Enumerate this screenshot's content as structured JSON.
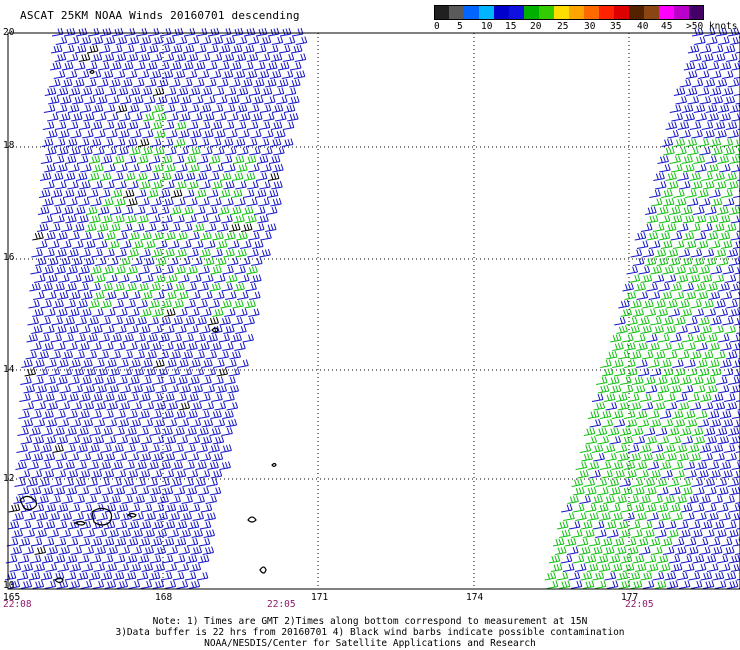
{
  "title": "ASCAT 25KM NOAA Winds 20160701 descending",
  "legend": {
    "colors": [
      "#202020",
      "#5a5a5a",
      "#0066ff",
      "#00b4ff",
      "#0000cc",
      "#1010e0",
      "#00b000",
      "#33cc00",
      "#ffdd00",
      "#ffa500",
      "#ff6a00",
      "#ff2200",
      "#dd0000",
      "#552200",
      "#8b4513",
      "#ff00ff",
      "#bb00cc",
      "#440066"
    ],
    "labels": [
      "0",
      "5",
      "10",
      "15",
      "20",
      "25",
      "30",
      "35",
      "40",
      "45",
      ">50 knots"
    ]
  },
  "axes": {
    "lat_labels": [
      "20",
      "18",
      "16",
      "14",
      "12",
      "10"
    ],
    "lon_labels": [
      "165",
      "168",
      "171",
      "174",
      "177"
    ]
  },
  "time_labels": [
    "22:08",
    "22:05",
    "22:05"
  ],
  "note": {
    "line1": "Note: 1) Times are GMT 2)Times along bottom correspond to measurement at 15N",
    "line2": "3)Data buffer is 22 hrs from 20160701 4) Black wind barbs indicate possible contamination",
    "line3": "NOAA/NESDIS/Center for Satellite Applications and Research"
  },
  "barb_colors": {
    "blue": "#1414c8",
    "green": "#10c010",
    "black": "#000000"
  }
}
